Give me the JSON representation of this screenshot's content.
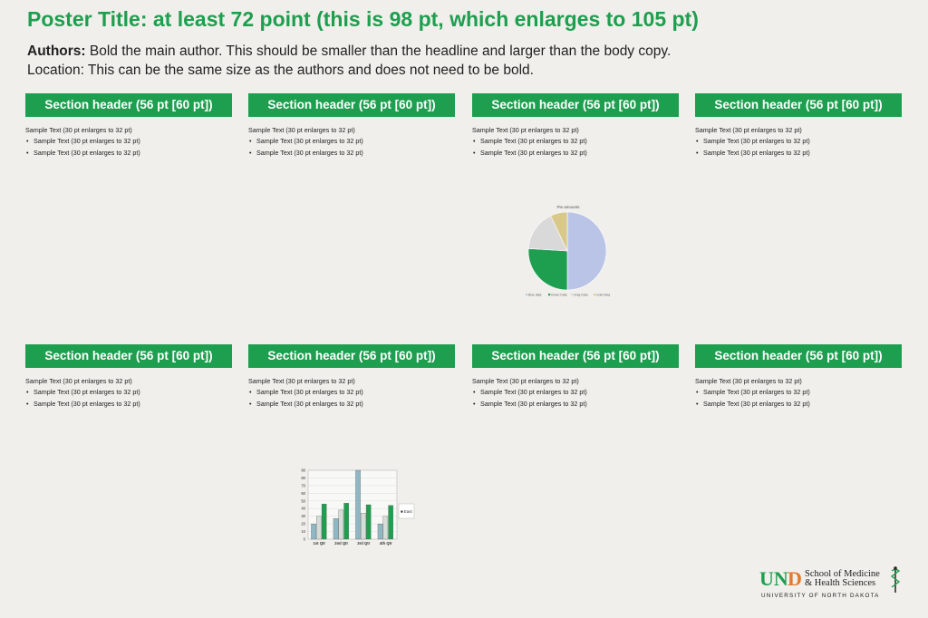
{
  "title": "Poster Title: at least 72 point (this is 98 pt, which enlarges to 105 pt)",
  "authors": {
    "label": "Authors:",
    "text": "Bold the main author. This should be smaller than the headline and larger than the body copy.",
    "location": "Location: This can be the same size as the authors and does not need to be bold."
  },
  "sections_top": [
    {
      "header": "Section header (56 pt [60 pt])",
      "text": "Sample Text (30 pt enlarges to 32 pt)",
      "bullets": [
        "Sample Text (30 pt enlarges to 32 pt)",
        "Sample Text (30 pt enlarges to 32 pt)"
      ]
    },
    {
      "header": "Section header (56 pt [60 pt])",
      "text": "Sample Text (30 pt enlarges to 32 pt)",
      "bullets": [
        "Sample Text (30 pt enlarges to 32 pt)",
        "Sample Text (30 pt enlarges to 32 pt)"
      ]
    },
    {
      "header": "Section header (56 pt [60 pt])",
      "text": "Sample Text (30 pt enlarges to 32 pt)",
      "bullets": [
        "Sample Text (30 pt enlarges to 32 pt)",
        "Sample Text (30 pt enlarges to 32 pt)"
      ]
    },
    {
      "header": "Section header (56 pt [60 pt])",
      "text": "Sample Text (30 pt enlarges to 32 pt)",
      "bullets": [
        "Sample Text (30 pt enlarges to 32 pt)",
        "Sample Text (30 pt enlarges to 32 pt)"
      ]
    }
  ],
  "sections_bottom": [
    {
      "header": "Section header (56 pt [60 pt])",
      "text": "Sample Text (30 pt enlarges to 32 pt)",
      "bullets": [
        "Sample Text (30 pt enlarges to 32 pt)",
        "Sample Text (30 pt enlarges to 32 pt)"
      ]
    },
    {
      "header": "Section header (56 pt [60 pt])",
      "text": "Sample Text (30 pt enlarges to 32 pt)",
      "bullets": [
        "Sample Text (30 pt enlarges to 32 pt)",
        "Sample Text (30 pt enlarges to 32 pt)"
      ]
    },
    {
      "header": "Section header (56 pt [60 pt])",
      "text": "Sample Text (30 pt enlarges to 32 pt)",
      "bullets": [
        "Sample Text (30 pt enlarges to 32 pt)",
        "Sample Text (30 pt enlarges to 32 pt)"
      ]
    },
    {
      "header": "Section header (56 pt [60 pt])",
      "text": "Sample Text (30 pt enlarges to 32 pt)",
      "bullets": [
        "Sample Text (30 pt enlarges to 32 pt)",
        "Sample Text (30 pt enlarges to 32 pt)"
      ]
    }
  ],
  "chart_data": [
    {
      "type": "pie",
      "title": "Pie amounts",
      "categories": [
        "Blue data",
        "Green Data",
        "Gray Data",
        "Gold Data"
      ],
      "values": [
        50,
        26,
        17,
        7
      ],
      "colors": [
        "#b9c4e6",
        "#1e9e4f",
        "#d9d9d9",
        "#d8c98a"
      ],
      "legend": "bottom"
    },
    {
      "type": "bar",
      "title": "",
      "categories": [
        "1st Qtr",
        "2nd Qtr",
        "3rd Qtr",
        "4th Qtr"
      ],
      "ylim": [
        0,
        90
      ],
      "yticks": [
        0,
        10,
        20,
        30,
        40,
        50,
        60,
        70,
        80,
        90
      ],
      "series": [
        {
          "name": "",
          "values": [
            20,
            27,
            90,
            20
          ],
          "color": "#8fb8c4"
        },
        {
          "name": "",
          "values": [
            30,
            38,
            34,
            30
          ],
          "color": "#d6dcd8"
        },
        {
          "name": "",
          "values": [
            46,
            47,
            45,
            44
          ],
          "color": "#1e9e4f"
        }
      ],
      "legend_label": "■ East",
      "legend": "right",
      "grid": true
    }
  ],
  "logo": {
    "school_line1": "School of Medicine",
    "school_line2": "& Health Sciences",
    "university": "UNIVERSITY OF NORTH DAKOTA",
    "mark": "UND",
    "colors": {
      "green": "#1e9e4f",
      "orange": "#e07a2e",
      "dark": "#222"
    }
  }
}
